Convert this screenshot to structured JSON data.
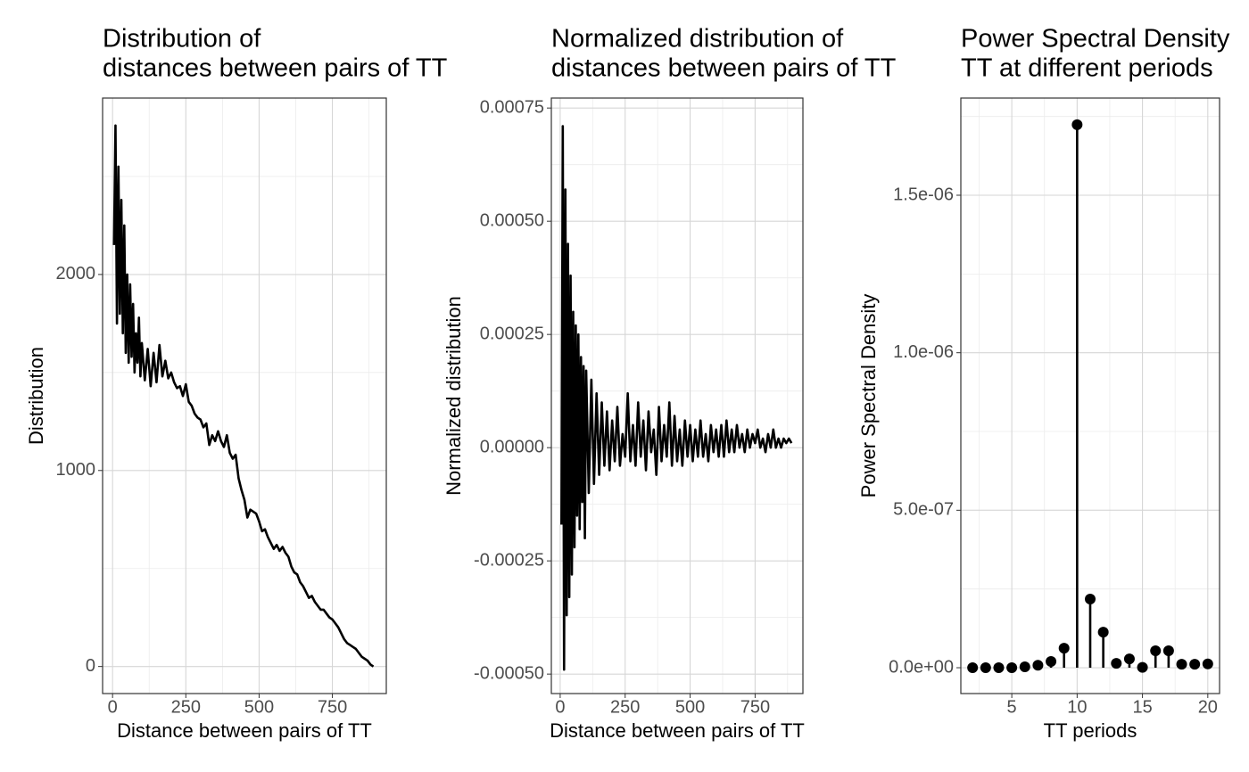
{
  "chart_data": [
    {
      "type": "line",
      "title": [
        "Distribution of",
        "distances between pairs of TT"
      ],
      "x_label": "Distance between pairs of TT",
      "y_label": "Distribution",
      "color": "#000000",
      "grid": true,
      "minor_grid": true,
      "xlim": [
        -34,
        934
      ],
      "xticks": [
        0,
        250,
        500,
        750
      ],
      "ylim": [
        -138,
        2900
      ],
      "yticks": [
        0,
        1000,
        2000
      ],
      "x": [
        5,
        10,
        15,
        20,
        25,
        30,
        35,
        40,
        45,
        50,
        55,
        60,
        65,
        70,
        75,
        80,
        85,
        90,
        95,
        100,
        110,
        120,
        130,
        140,
        150,
        160,
        170,
        180,
        190,
        200,
        210,
        220,
        230,
        240,
        250,
        260,
        270,
        280,
        290,
        300,
        310,
        320,
        330,
        340,
        350,
        360,
        370,
        380,
        390,
        400,
        410,
        420,
        430,
        440,
        450,
        460,
        470,
        480,
        490,
        500,
        510,
        520,
        530,
        540,
        550,
        560,
        570,
        580,
        590,
        600,
        610,
        620,
        630,
        640,
        650,
        660,
        670,
        680,
        690,
        700,
        710,
        720,
        730,
        740,
        750,
        760,
        770,
        780,
        790,
        800,
        810,
        820,
        830,
        840,
        850,
        860,
        870,
        880,
        890
      ],
      "values": [
        2150,
        2760,
        1750,
        2550,
        1800,
        2380,
        1700,
        2250,
        1600,
        2000,
        1550,
        1950,
        1580,
        1850,
        1500,
        1700,
        1550,
        1780,
        1480,
        1650,
        1460,
        1620,
        1430,
        1600,
        1450,
        1640,
        1480,
        1560,
        1470,
        1500,
        1450,
        1420,
        1430,
        1380,
        1440,
        1350,
        1330,
        1290,
        1270,
        1260,
        1220,
        1240,
        1130,
        1180,
        1150,
        1200,
        1150,
        1120,
        1180,
        1090,
        1060,
        1080,
        960,
        900,
        850,
        760,
        800,
        790,
        780,
        740,
        690,
        700,
        660,
        630,
        600,
        620,
        590,
        610,
        580,
        560,
        510,
        480,
        470,
        430,
        410,
        380,
        350,
        360,
        330,
        310,
        290,
        290,
        270,
        250,
        240,
        220,
        200,
        170,
        140,
        120,
        110,
        100,
        90,
        70,
        50,
        40,
        30,
        10,
        0
      ]
    },
    {
      "type": "line",
      "title": [
        "Normalized distribution of",
        "distances between pairs of TT"
      ],
      "x_label": "Distance between pairs of TT",
      "y_label": "Normalized distribution",
      "color": "#000000",
      "grid": true,
      "minor_grid": true,
      "xlim": [
        -34,
        934
      ],
      "xticks": [
        0,
        250,
        500,
        750
      ],
      "ylim": [
        -0.000543,
        0.000772
      ],
      "yticks": [
        {
          "value": -0.0005,
          "label": "-0.00050"
        },
        {
          "value": -0.00025,
          "label": "-0.00025"
        },
        {
          "value": 0,
          "label": "0.00000"
        },
        {
          "value": 0.00025,
          "label": "0.00025"
        },
        {
          "value": 0.0005,
          "label": "0.00050"
        },
        {
          "value": 0.00075,
          "label": "0.00075"
        }
      ],
      "x": [
        5,
        10,
        15,
        20,
        25,
        30,
        35,
        40,
        45,
        50,
        55,
        60,
        65,
        70,
        75,
        80,
        85,
        90,
        95,
        100,
        110,
        120,
        130,
        140,
        150,
        160,
        170,
        180,
        190,
        200,
        210,
        220,
        230,
        240,
        250,
        260,
        270,
        280,
        290,
        300,
        310,
        320,
        330,
        340,
        350,
        360,
        370,
        380,
        390,
        400,
        410,
        420,
        430,
        440,
        450,
        460,
        470,
        480,
        490,
        500,
        510,
        520,
        530,
        540,
        550,
        560,
        570,
        580,
        590,
        600,
        610,
        620,
        630,
        640,
        650,
        660,
        670,
        680,
        690,
        700,
        710,
        720,
        730,
        740,
        750,
        760,
        770,
        780,
        790,
        800,
        810,
        820,
        830,
        840,
        850,
        860,
        870,
        880,
        890
      ],
      "values": [
        -0.00017,
        0.00071,
        -0.00049,
        0.00057,
        -0.00037,
        0.00045,
        -0.00033,
        0.00038,
        -0.00028,
        0.0003,
        -0.00022,
        0.00027,
        -0.00015,
        0.00025,
        -0.00018,
        0.0002,
        -0.00012,
        0.00018,
        -0.0002,
        0.00017,
        -0.0001,
        0.00015,
        -8e-05,
        0.00012,
        -6e-05,
        0.0001,
        -4e-05,
        8e-05,
        -5e-05,
        6e-05,
        -3e-05,
        9e-05,
        -4e-05,
        3e-05,
        -2e-05,
        0.00012,
        -3e-05,
        5e-05,
        -4e-05,
        0.0001,
        -2e-05,
        6e-05,
        -5e-05,
        8e-05,
        -1e-05,
        4e-05,
        -6e-05,
        9e-05,
        -3e-05,
        5e-05,
        -2e-05,
        0.0001,
        -4e-05,
        7e-05,
        -3e-05,
        4e-05,
        -4e-05,
        6e-05,
        -2e-05,
        5e-05,
        -3e-05,
        4e-05,
        -2e-05,
        6e-05,
        -2e-05,
        3e-05,
        -3e-05,
        5e-05,
        -1e-05,
        4e-05,
        -2e-05,
        5e-05,
        -2e-05,
        6e-05,
        -1e-05,
        4e-05,
        -1e-05,
        5e-05,
        0,
        3e-05,
        -1e-05,
        4e-05,
        0,
        3e-05,
        1e-05,
        4e-05,
        0,
        2e-05,
        -1e-05,
        3e-05,
        0,
        4e-05,
        0,
        2e-05,
        0,
        2e-05,
        1e-05,
        2e-05,
        1e-05
      ]
    },
    {
      "type": "lollipop",
      "title": [
        "Power Spectral Density",
        "TT at different periods"
      ],
      "x_label": "TT periods",
      "y_label": "Power Spectral Density",
      "color": "#000000",
      "grid": true,
      "minor_grid": true,
      "xlim": [
        1.1,
        20.9
      ],
      "xticks": [
        5,
        10,
        15,
        20
      ],
      "ylim": [
        -8.2e-08,
        1.8085e-06
      ],
      "yticks": [
        {
          "value": 0,
          "label": "0.0e+00"
        },
        {
          "value": 5e-07,
          "label": "5.0e-07"
        },
        {
          "value": 1e-06,
          "label": "1.0e-06"
        },
        {
          "value": 1.5e-06,
          "label": "1.5e-06"
        }
      ],
      "x": [
        2,
        3,
        4,
        5,
        6,
        7,
        8,
        9,
        10,
        11,
        12,
        13,
        14,
        15,
        16,
        17,
        18,
        19,
        20
      ],
      "values": [
        0,
        0,
        0,
        0,
        3e-09,
        8e-09,
        2e-08,
        6.2e-08,
        1.724e-06,
        2.18e-07,
        1.13e-07,
        1.4e-08,
        2.8e-08,
        1e-09,
        5.4e-08,
        5.4e-08,
        1.1e-08,
        1.1e-08,
        1.2e-08
      ]
    }
  ]
}
